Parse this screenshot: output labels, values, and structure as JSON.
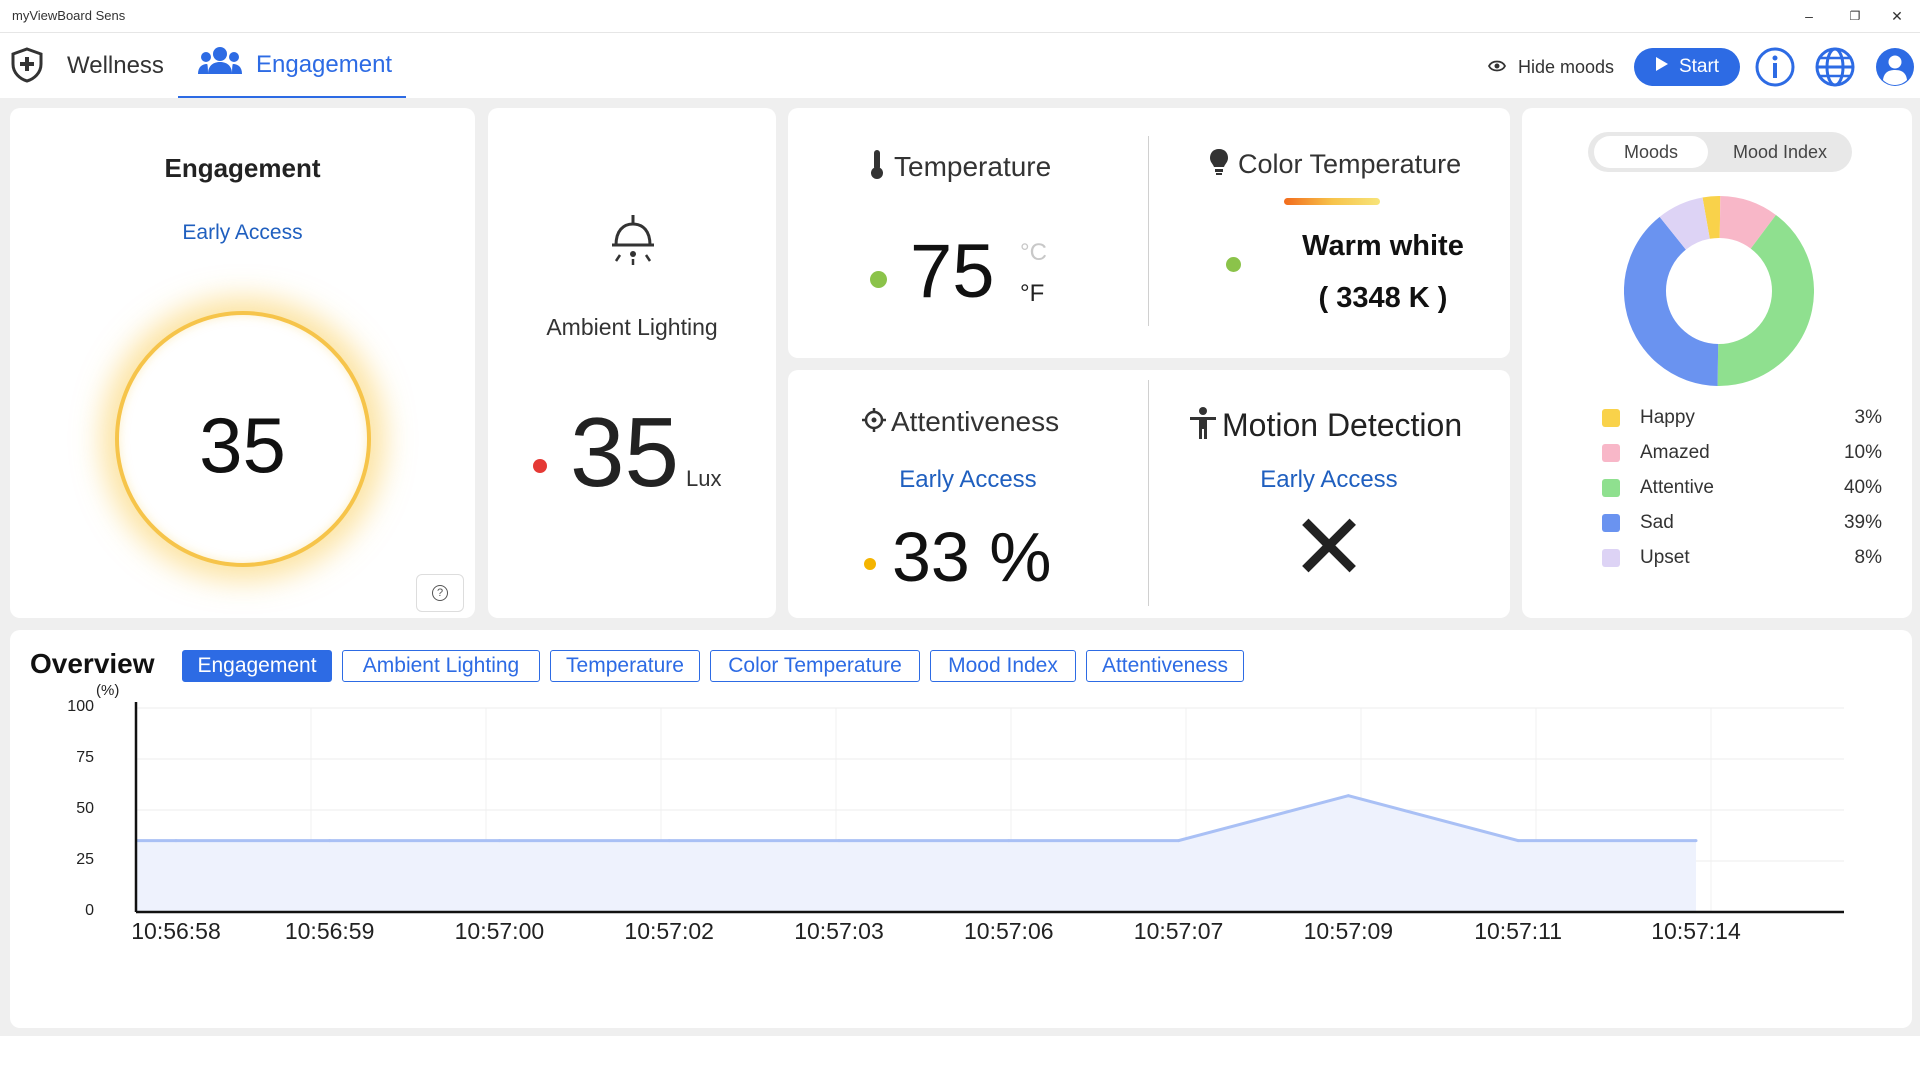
{
  "window": {
    "title": "myViewBoard Sens",
    "minimize_glyph": "–",
    "restore_glyph": "❐",
    "close_glyph": "✕"
  },
  "nav": {
    "tabs": [
      {
        "label": "Wellness",
        "icon": "shield-icon"
      },
      {
        "label": "Engagement",
        "icon": "people-icon",
        "active": true
      }
    ],
    "hide_moods_label": "Hide moods",
    "start_label": "Start",
    "accent_color": "#2d6be4"
  },
  "engagement_card": {
    "title": "Engagement",
    "subtitle": "Early Access",
    "value": "35",
    "help_glyph": "?"
  },
  "ambient_card": {
    "label": "Ambient Lighting",
    "value": "35",
    "unit": "Lux",
    "status_color": "#e53935"
  },
  "temperature_card": {
    "label": "Temperature",
    "value": "75",
    "unit_c": "°C",
    "unit_f": "°F",
    "status_color": "#8bc34a"
  },
  "color_temp_card": {
    "label": "Color Temperature",
    "value": "Warm white",
    "kelvin": "( 3348 K )",
    "status_color": "#8bc34a"
  },
  "attentiveness_card": {
    "label": "Attentiveness",
    "subtitle": "Early Access",
    "value": "33 %",
    "status_color": "#f4b400"
  },
  "motion_card": {
    "label": "Motion Detection",
    "subtitle": "Early Access",
    "value_glyph": "✕"
  },
  "moods_card": {
    "toggle": [
      "Moods",
      "Mood Index"
    ],
    "active_toggle": "Moods",
    "legend": [
      {
        "name": "Happy",
        "pct": "3%",
        "value": 3,
        "color": "#f9d24a"
      },
      {
        "name": "Amazed",
        "pct": "10%",
        "value": 10,
        "color": "#f8b7c8"
      },
      {
        "name": "Attentive",
        "pct": "40%",
        "value": 40,
        "color": "#8fe08f"
      },
      {
        "name": "Sad",
        "pct": "39%",
        "value": 39,
        "color": "#6a93f0"
      },
      {
        "name": "Upset",
        "pct": "8%",
        "value": 8,
        "color": "#ddd3f5"
      }
    ]
  },
  "overview": {
    "title": "Overview",
    "tabs": [
      "Engagement",
      "Ambient Lighting",
      "Temperature",
      "Color Temperature",
      "Mood Index",
      "Attentiveness"
    ],
    "active_tab": "Engagement"
  },
  "chart_data": {
    "type": "area",
    "title": "",
    "ylabel": "(%)",
    "xlabel": "",
    "ylim": [
      0,
      100
    ],
    "yticks": [
      0,
      25,
      50,
      75,
      100
    ],
    "x": [
      "10:56:58",
      "10:56:59",
      "10:57:00",
      "10:57:02",
      "10:57:03",
      "10:57:06",
      "10:57:07",
      "10:57:09",
      "10:57:11",
      "10:57:14"
    ],
    "series": [
      {
        "values": [
          35,
          35,
          35,
          35,
          35,
          35,
          35,
          57,
          35,
          35
        ]
      }
    ],
    "grid": true,
    "color": "#5b8def"
  }
}
